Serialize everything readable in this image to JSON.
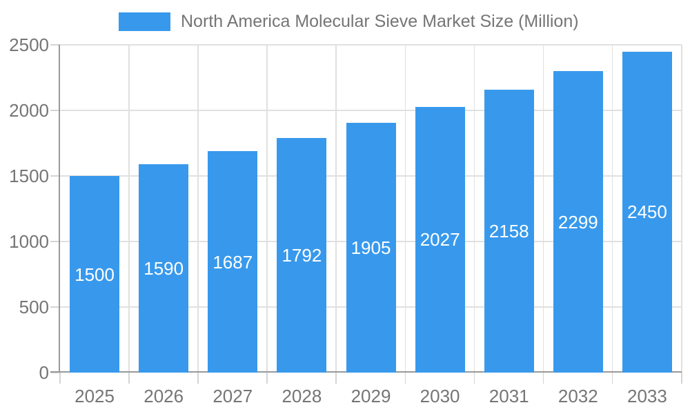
{
  "chart_data": {
    "type": "bar",
    "title": "North America Molecular Sieve Market Size (Million)",
    "categories": [
      "2025",
      "2026",
      "2027",
      "2028",
      "2029",
      "2030",
      "2031",
      "2032",
      "2033"
    ],
    "values": [
      1500,
      1590,
      1687,
      1792,
      1905,
      2027,
      2158,
      2299,
      2450
    ],
    "yticks": [
      0,
      500,
      1000,
      1500,
      2000,
      2500
    ],
    "ylim": [
      0,
      2500
    ],
    "xlabel": "",
    "ylabel": "",
    "grid": true,
    "legend_position": "top",
    "value_labels": "inside-center",
    "colors": {
      "bar": "#3899EC",
      "value_label": "#FFFFFF",
      "axis_text": "#757575",
      "gridline": "#E0E0E0",
      "axis_line": "#999999",
      "tick": "#D4D4D4",
      "background": "#FFFFFF"
    }
  }
}
